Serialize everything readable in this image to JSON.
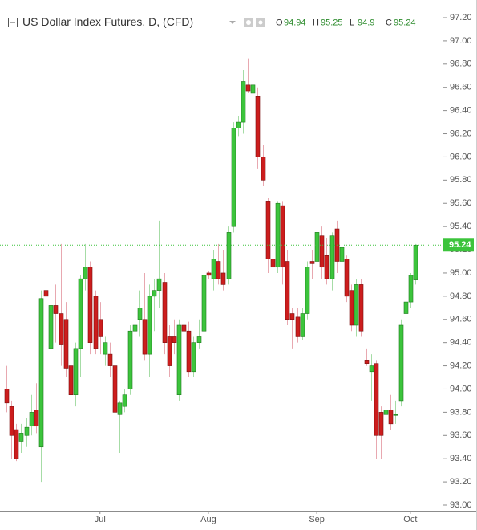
{
  "chart_data": {
    "type": "candlestick",
    "title": "US Dollar Index Futures, D, (CFD)",
    "ohlc_labels": [
      "O",
      "H",
      "L",
      "C"
    ],
    "up_color": "#3cc43c",
    "down_color": "#cc1d1d",
    "categories": [
      null,
      null,
      null,
      null,
      null,
      null,
      null,
      null,
      null,
      null,
      null,
      null,
      null,
      null,
      null,
      null,
      null,
      null,
      null,
      "Jul",
      null,
      null,
      null,
      null,
      null,
      null,
      null,
      null,
      null,
      null,
      null,
      null,
      null,
      null,
      null,
      null,
      null,
      null,
      null,
      null,
      null,
      "Aug",
      null,
      null,
      null,
      null,
      null,
      null,
      null,
      null,
      null,
      null,
      null,
      null,
      null,
      null,
      null,
      null,
      null,
      null,
      null,
      null,
      null,
      "Sep",
      null,
      null,
      null,
      null,
      null,
      null,
      null,
      null,
      null,
      null,
      null,
      null,
      null,
      null,
      null,
      null,
      null,
      null,
      "Oct",
      null
    ],
    "open": [
      94.0,
      93.85,
      93.65,
      93.55,
      93.6,
      93.68,
      93.82,
      93.5,
      94.85,
      94.35,
      94.72,
      94.65,
      94.6,
      94.2,
      93.95,
      94.35,
      94.95,
      95.05,
      94.8,
      94.6,
      94.3,
      94.3,
      94.2,
      93.78,
      93.85,
      94.0,
      94.5,
      94.6,
      94.6,
      94.3,
      94.8,
      94.85,
      94.92,
      94.45,
      94.45,
      93.95,
      94.55,
      94.5,
      94.15,
      94.4,
      94.5,
      95.0,
      94.95,
      95.1,
      95.0,
      94.95,
      95.4,
      96.25,
      96.3,
      96.62,
      96.55,
      96.52,
      96.0,
      95.62,
      95.12,
      95.05,
      95.58,
      95.1,
      94.65,
      94.62,
      94.45,
      94.65,
      95.1,
      95.1,
      95.32,
      95.15,
      94.95,
      95.38,
      95.1,
      95.12,
      94.85,
      94.55,
      94.9,
      94.25,
      94.15,
      94.22,
      93.8,
      93.78,
      93.82,
      93.78,
      93.9,
      94.65,
      94.75,
      94.94
    ],
    "high": [
      94.2,
      93.9,
      93.7,
      93.7,
      93.75,
      93.95,
      94.05,
      94.85,
      94.95,
      94.8,
      94.9,
      95.25,
      94.75,
      94.4,
      94.4,
      94.98,
      95.25,
      95.1,
      94.85,
      94.75,
      94.45,
      94.4,
      94.25,
      93.9,
      94.0,
      94.55,
      94.65,
      94.85,
      95.0,
      94.9,
      94.95,
      95.45,
      95.0,
      94.55,
      94.6,
      94.6,
      94.62,
      94.58,
      94.45,
      94.6,
      95.0,
      95.02,
      95.2,
      95.25,
      95.2,
      95.4,
      96.3,
      96.35,
      96.75,
      96.85,
      96.7,
      96.6,
      96.1,
      95.65,
      95.3,
      95.62,
      95.62,
      95.2,
      94.7,
      94.7,
      94.7,
      95.1,
      95.2,
      95.7,
      95.4,
      95.3,
      95.35,
      95.45,
      95.25,
      95.15,
      94.9,
      94.95,
      94.95,
      94.35,
      94.3,
      94.25,
      93.85,
      93.85,
      93.95,
      93.9,
      94.6,
      94.85,
      95.0,
      95.25
    ],
    "low": [
      93.8,
      93.4,
      93.38,
      93.45,
      93.5,
      93.6,
      93.62,
      93.2,
      94.6,
      94.3,
      94.4,
      94.2,
      94.1,
      93.9,
      93.85,
      94.1,
      94.85,
      94.3,
      94.3,
      94.3,
      94.2,
      94.1,
      93.75,
      93.45,
      93.8,
      93.95,
      94.4,
      94.45,
      94.25,
      94.1,
      94.5,
      94.7,
      94.3,
      94.1,
      94.3,
      93.9,
      94.3,
      94.1,
      94.1,
      94.35,
      94.45,
      94.95,
      94.85,
      94.9,
      94.85,
      94.9,
      95.35,
      96.18,
      96.2,
      96.55,
      96.5,
      95.9,
      95.75,
      95.0,
      94.95,
      95.0,
      94.9,
      94.55,
      94.35,
      94.4,
      94.42,
      94.6,
      94.95,
      95.0,
      94.95,
      94.9,
      94.85,
      95.0,
      94.95,
      94.75,
      94.5,
      94.45,
      94.45,
      94.2,
      93.9,
      93.4,
      93.4,
      93.6,
      93.65,
      93.7,
      93.85,
      94.6,
      94.7,
      94.9
    ],
    "close": [
      93.88,
      93.6,
      93.4,
      93.62,
      93.67,
      93.8,
      93.68,
      94.78,
      94.8,
      94.72,
      94.65,
      94.38,
      94.18,
      93.95,
      94.35,
      94.95,
      95.05,
      94.4,
      94.35,
      94.45,
      94.4,
      94.2,
      93.8,
      93.88,
      93.95,
      94.5,
      94.55,
      94.7,
      94.3,
      94.8,
      94.85,
      94.95,
      94.4,
      94.2,
      94.4,
      94.55,
      94.5,
      94.15,
      94.4,
      94.45,
      94.98,
      94.98,
      95.12,
      94.95,
      94.9,
      95.35,
      96.25,
      96.3,
      96.65,
      96.57,
      96.62,
      96.0,
      95.8,
      95.12,
      95.05,
      95.6,
      95.05,
      94.6,
      94.6,
      94.45,
      94.65,
      95.05,
      95.08,
      95.35,
      95.05,
      94.95,
      95.32,
      95.1,
      95.22,
      94.8,
      94.55,
      94.9,
      94.5,
      94.22,
      94.2,
      93.6,
      93.6,
      93.82,
      93.7,
      93.78,
      94.55,
      94.75,
      94.98,
      95.24
    ],
    "ylim": [
      93.0,
      97.2
    ],
    "yticks": [
      {
        "value": 93.0,
        "label": "93.00"
      },
      {
        "value": 93.2,
        "label": "93.20"
      },
      {
        "value": 93.4,
        "label": "93.40"
      },
      {
        "value": 93.6,
        "label": "93.60"
      },
      {
        "value": 93.8,
        "label": "93.80"
      },
      {
        "value": 94.0,
        "label": "94.00"
      },
      {
        "value": 94.2,
        "label": "94.20"
      },
      {
        "value": 94.4,
        "label": "94.40"
      },
      {
        "value": 94.6,
        "label": "94.60"
      },
      {
        "value": 94.8,
        "label": "94.80"
      },
      {
        "value": 95.0,
        "label": "95.00"
      },
      {
        "value": 95.2,
        "label": "95.20"
      },
      {
        "value": 95.4,
        "label": "95.40"
      },
      {
        "value": 95.6,
        "label": "95.60"
      },
      {
        "value": 95.8,
        "label": "95.80"
      },
      {
        "value": 96.0,
        "label": "96.00"
      },
      {
        "value": 96.2,
        "label": "96.20"
      },
      {
        "value": 96.4,
        "label": "96.40"
      },
      {
        "value": 96.6,
        "label": "96.60"
      },
      {
        "value": 96.8,
        "label": "96.80"
      },
      {
        "value": 97.0,
        "label": "97.00"
      },
      {
        "value": 97.2,
        "label": "97.20"
      }
    ]
  }
}
